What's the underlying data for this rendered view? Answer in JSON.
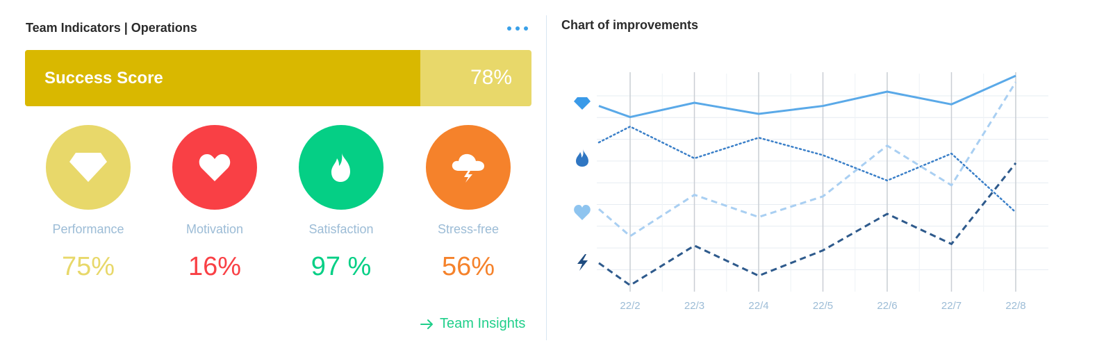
{
  "left_panel": {
    "title": "Team Indicators | Operations",
    "more_icon": "ellipsis-icon",
    "success_score": {
      "label": "Success Score",
      "value_text": "78%",
      "fraction": 0.78,
      "fill_color": "#d9b800",
      "track_color": "#e8d86a"
    },
    "indicators": [
      {
        "name": "performance",
        "label": "Performance",
        "value": "75%",
        "color": "#e8d86a",
        "icon": "diamond-icon"
      },
      {
        "name": "motivation",
        "label": "Motivation",
        "value": "16%",
        "color": "#f94045",
        "icon": "heart-icon"
      },
      {
        "name": "satisfaction",
        "label": "Satisfaction",
        "value": "97 %",
        "color": "#05cf85",
        "icon": "flame-icon"
      },
      {
        "name": "stress-free",
        "label": "Stress-free",
        "value": "56%",
        "color": "#f5822b",
        "icon": "storm-cloud-icon"
      }
    ],
    "link": {
      "label": "Team Insights",
      "icon": "arrow-right-icon",
      "color": "#1fcf8a"
    }
  },
  "chart_panel": {
    "title": "Chart of improvements",
    "chart_data": {
      "type": "line",
      "categories": [
        "22/2",
        "22/3",
        "22/4",
        "22/5",
        "22/6",
        "22/7",
        "22/8"
      ],
      "series": [
        {
          "icon": "diamond-icon",
          "style": "solid",
          "color": "#5aa9e8",
          "start": 87,
          "values": [
            80,
            89,
            82,
            87,
            96,
            88,
            106
          ]
        },
        {
          "icon": "flame-icon",
          "style": "dotted",
          "color": "#3a7fc8",
          "start": 64,
          "values": [
            74,
            54,
            67,
            56,
            40,
            57,
            20
          ]
        },
        {
          "icon": "heart-icon",
          "style": "dashed",
          "color": "#a9cff2",
          "start": 22,
          "values": [
            5,
            31,
            17,
            30,
            62,
            37,
            102
          ]
        },
        {
          "icon": "lightning-icon",
          "style": "dashed",
          "color": "#2e5a8c",
          "start": -12,
          "values": [
            -26,
            -1,
            -20,
            -4,
            19,
            0,
            51
          ]
        }
      ],
      "ylim": [
        -30,
        110
      ],
      "grid": true,
      "legend": "icons on left"
    }
  }
}
